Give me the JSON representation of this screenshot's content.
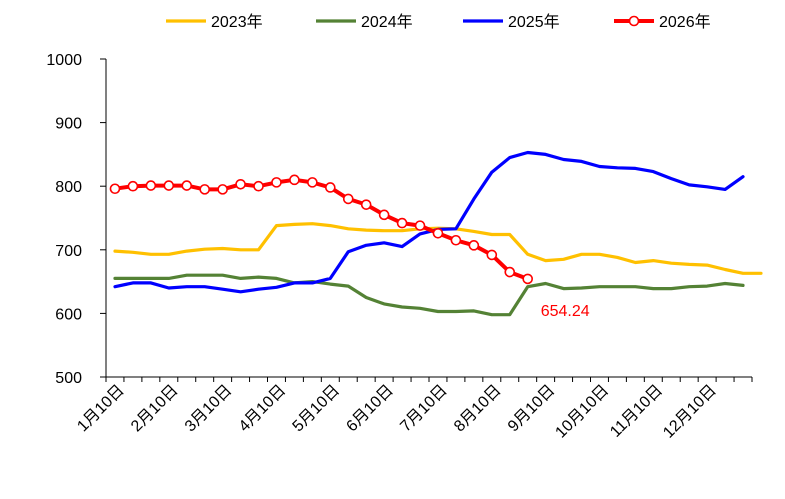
{
  "chart_data": {
    "type": "line",
    "title": "",
    "xlabel": "",
    "ylabel": "",
    "ylim": [
      500,
      1000
    ],
    "yticks": [
      500,
      600,
      700,
      800,
      900,
      1000
    ],
    "grid": false,
    "legend_position": "top",
    "months": [
      "1月10日",
      "2月10日",
      "3月10日",
      "4月10日",
      "5月10日",
      "6月10日",
      "7月10日",
      "8月10日",
      "9月10日",
      "10月10日",
      "11月10日",
      "12月10日"
    ],
    "series": [
      {
        "name": "2023年",
        "color": "#FFC000",
        "markers": false,
        "values": [
          698,
          696,
          693,
          693,
          698,
          701,
          702,
          700,
          700,
          738,
          740,
          741,
          738,
          733,
          731,
          730,
          730,
          733,
          734,
          733,
          729,
          724,
          724,
          693,
          683,
          685,
          693,
          693,
          688,
          680,
          683,
          679,
          677,
          676,
          669,
          663,
          663
        ]
      },
      {
        "name": "2024年",
        "color": "#548235",
        "markers": false,
        "values": [
          655,
          655,
          655,
          655,
          660,
          660,
          660,
          655,
          657,
          655,
          648,
          650,
          646,
          643,
          625,
          615,
          610,
          608,
          603,
          603,
          604,
          598,
          598,
          642,
          647,
          639,
          640,
          642,
          642,
          642,
          639,
          639,
          642,
          643,
          647,
          644
        ]
      },
      {
        "name": "2025年",
        "color": "#0000FF",
        "markers": false,
        "values": [
          642,
          648,
          648,
          640,
          642,
          642,
          638,
          634,
          638,
          641,
          648,
          648,
          655,
          697,
          707,
          711,
          705,
          725,
          732,
          733,
          780,
          822,
          845,
          853,
          850,
          842,
          839,
          831,
          829,
          828,
          823,
          812,
          802,
          799,
          795,
          815
        ]
      },
      {
        "name": "2026年",
        "color": "#FF0000",
        "markers": true,
        "values": [
          796,
          800,
          801,
          801,
          801,
          795,
          795,
          803,
          800,
          806,
          810,
          806,
          798,
          780,
          771,
          755,
          742,
          738,
          726,
          715,
          707,
          692,
          665,
          654.24
        ]
      }
    ],
    "annotations": [
      {
        "text": "654.24",
        "series": "2026年",
        "index": 23,
        "color": "#FF0000"
      }
    ]
  }
}
